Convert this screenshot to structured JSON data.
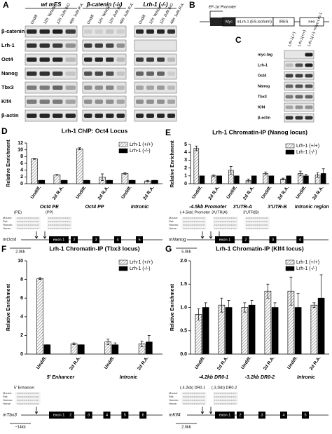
{
  "panel_a": {
    "label": "A",
    "groups": [
      {
        "name": "wt mES",
        "lanes": [
          "Undiff",
          "12h' Vehicle",
          "12h' 2uM BIO",
          "48h' 1uM R.A."
        ]
      },
      {
        "name": "β-catenin (-/-)",
        "lanes": [
          "Undiff",
          "12h' Vehicle",
          "12h' 2uM BIO",
          "48h' 1uM R.A."
        ]
      },
      {
        "name": "Lrh-1 (-/-)",
        "lanes": [
          "Undiff",
          "12h' Vehicle",
          "12h' 2uM BIO",
          "48h' 1uM R.A."
        ]
      }
    ],
    "rows": [
      "β-catenin",
      "Lrh-1",
      "Oct4",
      "Nanog",
      "Tbx3",
      "Klf4",
      "β-actin"
    ]
  },
  "panel_b": {
    "label": "B",
    "promoter": "EF-1α Promoter",
    "elements": [
      "Myc",
      "mLrh-1 (ES-isoform)",
      "IRES",
      "neo"
    ]
  },
  "panel_c": {
    "label": "C",
    "lanes": [
      "Lrh-1(-/-)",
      "Lrh-1(+/+)",
      "Lrh-1(-/-) +myc-Lrh-1"
    ],
    "rows": [
      "myc-tag",
      "Lrh-1",
      "Oct4",
      "Nanog",
      "Tbx3",
      "Klf4",
      "β-actin"
    ]
  },
  "chart_data": [
    {
      "type": "bar",
      "label": "D",
      "title": "Lrh-1 ChIP: Oct4 Locus",
      "y_label": "Relative Enrichment",
      "categories": [
        "Undiff.",
        "2d R.A.",
        "Undiff.",
        "2d R.A.",
        "Undiff.",
        "2d R.A."
      ],
      "groups": [
        "Oct4 PE",
        "Oct4 PP",
        "Intronic"
      ],
      "series": [
        {
          "name": "Lrh-1 (+/+)",
          "color": "#888888",
          "hatch": true,
          "values": [
            7.3,
            2.6,
            10.3,
            1.9,
            3.0,
            0.8
          ],
          "errors": [
            0.1,
            0.1,
            0.3,
            1.0,
            0.2,
            0.2
          ]
        },
        {
          "name": "Lrh-1 (-/-)",
          "color": "#000000",
          "values": [
            1,
            1,
            1,
            1,
            1,
            1
          ],
          "errors": [
            0,
            0,
            0,
            0,
            0,
            0
          ]
        }
      ],
      "ylim": [
        0,
        12
      ],
      "yticks": [
        0,
        2,
        4,
        6,
        8,
        10,
        12
      ],
      "legend": "upper right"
    },
    {
      "type": "bar",
      "label": "E",
      "title": "Lrh-1 Chromatin-IP (Nanog locus)",
      "y_label": "Relative Enrichment",
      "categories": [
        "Undiff.",
        "2d R.A.",
        "Undiff.",
        "2d R.A.",
        "Undiff.",
        "2d R.A.",
        "Undiff.",
        "2d R.A."
      ],
      "groups": [
        "-4.5kb Promoter",
        "3'UTR-A",
        "3'UTR-B",
        "Intronic region"
      ],
      "series": [
        {
          "name": "Lrh-1 (+/+)",
          "color": "#888888",
          "hatch": true,
          "values": [
            4.5,
            1.0,
            1.7,
            0.4,
            1.3,
            0.6,
            1.3,
            1.1
          ],
          "errors": [
            0.3,
            0.1,
            0.5,
            0.2,
            0.2,
            0.1,
            0.3,
            0.3
          ]
        },
        {
          "name": "Lrh-1 (-/-)",
          "color": "#000000",
          "values": [
            1,
            1,
            1,
            1,
            1,
            1,
            1,
            1.3
          ],
          "errors": [
            0,
            0,
            0,
            0,
            0,
            0,
            0.2,
            0.6
          ]
        }
      ],
      "ylim": [
        0,
        5
      ],
      "yticks": [
        0,
        1,
        2,
        3,
        4,
        5
      ],
      "legend": "upper right"
    },
    {
      "type": "bar",
      "label": "F",
      "title": "Lrh-1 Chromatin-IP (Tbx3 locus)",
      "y_label": "Relative Enrichment",
      "categories": [
        "Undiff.",
        "2d R.A.",
        "Undiff.",
        "2d R.A."
      ],
      "groups": [
        "5' Enhancer",
        "Intronic"
      ],
      "series": [
        {
          "name": "Lrh-1 (+/+)",
          "color": "#888888",
          "hatch": true,
          "values": [
            8.1,
            1.1,
            1.3,
            1.1
          ],
          "errors": [
            0.1,
            0.1,
            0.3,
            0.3
          ]
        },
        {
          "name": "Lrh-1 (-/-)",
          "color": "#000000",
          "values": [
            1,
            1,
            1,
            1.3
          ],
          "errors": [
            0,
            0,
            0.2,
            0.7
          ]
        }
      ],
      "ylim": [
        0,
        10
      ],
      "yticks": [
        0,
        2,
        4,
        6,
        8,
        10
      ],
      "legend": "upper right"
    },
    {
      "type": "bar",
      "label": "G",
      "title": "Lrh-1 Chromatin-IP (Klf4 locus)",
      "y_label": "Relative Enrichment",
      "categories": [
        "Undiff.",
        "2d R.A.",
        "Undiff.",
        "2d R.A.",
        "Undiff.",
        "2d R.A."
      ],
      "groups": [
        "-4.2kb DR0-1",
        "-3.2kb DR0-2",
        "Intronic"
      ],
      "series": [
        {
          "name": "Lrh-1 (+/+)",
          "color": "#888888",
          "hatch": true,
          "values": [
            0.85,
            1.05,
            1.0,
            1.35,
            1.35,
            1.05
          ],
          "errors": [
            0.12,
            0.15,
            0.1,
            0.15,
            0.3,
            0.05
          ]
        },
        {
          "name": "Lrh-1 (-/-)",
          "color": "#000000",
          "values": [
            1.0,
            1.0,
            1.05,
            1.0,
            1.0,
            1.2
          ],
          "errors": [
            0.1,
            0.15,
            0.1,
            0.1,
            0.3,
            0.5
          ]
        }
      ],
      "ylim": [
        0,
        2
      ],
      "yticks": [
        {
          "value": 0,
          "label": "0.0"
        },
        0.5,
        {
          "value": 1,
          "label": "1.0"
        },
        1.5,
        {
          "value": 2,
          "label": "2.0"
        }
      ],
      "legend": "upper right"
    }
  ],
  "diagrams": [
    {
      "gene": "mOct4",
      "regions": [
        "(PE)",
        "(PP)"
      ],
      "species": [
        "Mouse:",
        "Rat:",
        "Human:",
        "Horse:"
      ],
      "exons": [
        "exon 1",
        "2",
        "3",
        "4",
        "5"
      ],
      "scale": "2.0kb"
    },
    {
      "gene": "mNanog",
      "regions": [
        "(-4.5kb) Promoter",
        "3'UTR(A)",
        "3'UTR(B)"
      ],
      "species": [
        "Mouse:",
        "Rat:",
        "Human:",
        "Horse:"
      ],
      "exons": [
        "exon 1",
        "2",
        "3",
        "4"
      ],
      "scale": "5.0kb"
    },
    {
      "gene": "mTbx3",
      "regions": [
        "5' Enhancer"
      ],
      "species": [
        "Mouse:",
        "Rat:",
        "Human:",
        "Horse:"
      ],
      "exons": [
        "exon 1",
        "2",
        "3",
        "4",
        "5",
        "6"
      ],
      "scale": "~14kb"
    },
    {
      "gene": "mKlf4",
      "regions": [
        "(-4.2kb) DR0-1",
        "(-3.2kb) DR0-2"
      ],
      "species": [
        "Mouse:",
        "Rat:",
        "Human:",
        "Horse:"
      ],
      "exons": [
        "exon 1",
        "2",
        "3",
        "4",
        "5"
      ],
      "scale": "2.0kb"
    }
  ]
}
